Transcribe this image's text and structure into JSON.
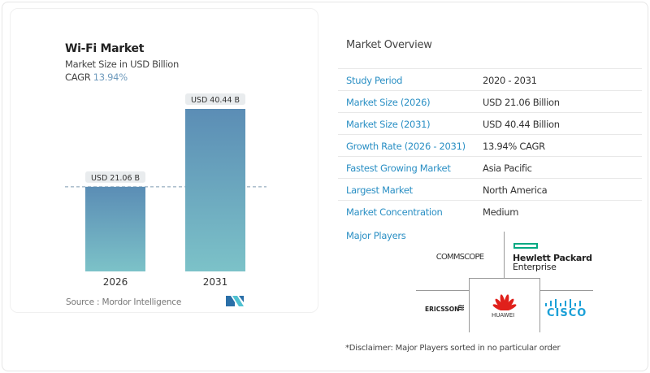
{
  "left_card": {
    "title": "Wi-Fi Market",
    "subtitle": "Market Size in USD Billion",
    "cagr_label": "CAGR",
    "cagr_value": "13.94%",
    "source": "Source :  Mordor Intelligence"
  },
  "chart_data": {
    "type": "bar",
    "title": "Wi-Fi Market",
    "subtitle": "Market Size in USD Billion",
    "categories": [
      "2026",
      "2031"
    ],
    "values": [
      21.06,
      40.44
    ],
    "data_labels": [
      "USD 21.06 B",
      "USD 40.44 B"
    ],
    "ylim": [
      0,
      40.44
    ],
    "grid": false,
    "reference_line": "dashed at 2026 value",
    "colors": {
      "bar_top": "#5b8db5",
      "bar_bottom": "#7cc2c8",
      "cagr": "#6f9bbd"
    }
  },
  "overview": {
    "title": "Market Overview",
    "rows": [
      {
        "label": "Study Period",
        "value": "2020 - 2031"
      },
      {
        "label": "Market Size (2026)",
        "value": "USD 21.06 Billion"
      },
      {
        "label": "Market Size (2031)",
        "value": "USD 40.44 Billion"
      },
      {
        "label": "Growth Rate (2026 - 2031)",
        "value": "13.94% CAGR"
      },
      {
        "label": "Fastest Growing Market",
        "value": "Asia Pacific"
      },
      {
        "label": "Largest Market",
        "value": "North America"
      },
      {
        "label": "Market Concentration",
        "value": "Medium"
      }
    ],
    "major_players_label": "Major Players",
    "players": {
      "commscope": "COMMSCOPE",
      "hpe_line1": "Hewlett Packard",
      "hpe_line2": "Enterprise",
      "ericsson": "ERICSSON",
      "huawei": "HUAWEI",
      "cisco": "CISCO"
    },
    "disclaimer": "*Disclaimer: Major Players sorted in no particular order"
  }
}
